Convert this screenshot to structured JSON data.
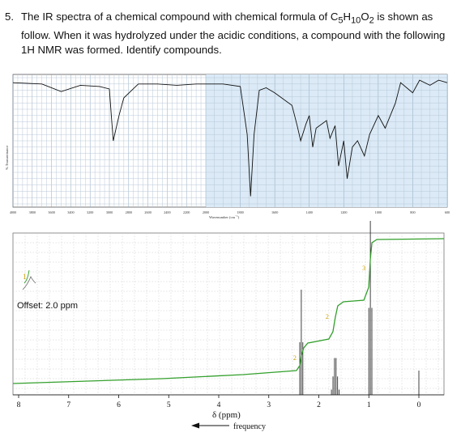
{
  "question": {
    "number": "5.",
    "text_before": "The IR spectra of a chemical compound with chemical formula of C",
    "sub1": "5",
    "mid1": "H",
    "sub2": "10",
    "mid2": "O",
    "sub3": "2",
    "text_after": " is shown as follow. When it was hydrolyzed under the acidic conditions, a compound with the following 1H NMR was formed. Identify compounds."
  },
  "ir": {
    "ylabel": "% Transmittance",
    "xlabel": "Wavenumber (cm",
    "xlabel_sup": "−1",
    "xlabel_end": ")",
    "ticks": [
      "4000",
      "3800",
      "3600",
      "3400",
      "3200",
      "3000",
      "2800",
      "2600",
      "2400",
      "2200",
      "2000",
      "1800",
      "1600",
      "1400",
      "1200",
      "1000",
      "800",
      "600"
    ]
  },
  "nmr": {
    "offset_label": "Offset: 2.0 ppm",
    "offset_number": "1",
    "xlabel": "δ (ppm)",
    "freq_label": "frequency",
    "ticks": [
      "8",
      "7",
      "6",
      "5",
      "4",
      "3",
      "2",
      "1",
      "0"
    ],
    "integrals": [
      "2",
      "2",
      "3"
    ]
  },
  "chart_data": [
    {
      "type": "line",
      "title": "",
      "xlabel": "Wavenumber (cm−1)",
      "ylabel": "% Transmittance",
      "xlim": [
        4000,
        600
      ],
      "x_reversed": true,
      "grid": true,
      "series": [
        {
          "x": [
            4000,
            3700,
            3500,
            3300,
            3100,
            3000,
            2980,
            2960,
            2900,
            2850,
            2700,
            2500,
            2300,
            2100,
            1900,
            1800,
            1760,
            1740,
            1720,
            1690,
            1650,
            1600,
            1500,
            1470,
            1450,
            1420,
            1400,
            1380,
            1360,
            1300,
            1280,
            1250,
            1230,
            1200,
            1180,
            1150,
            1120,
            1080,
            1050,
            1000,
            960,
            900,
            870,
            800,
            760,
            700,
            650,
            600
          ],
          "y": [
            96,
            95,
            89,
            94,
            93,
            91,
            70,
            50,
            70,
            84,
            95,
            95,
            94,
            95,
            95,
            93,
            55,
            6,
            55,
            90,
            92,
            88,
            78,
            62,
            50,
            63,
            70,
            45,
            60,
            66,
            52,
            62,
            30,
            50,
            20,
            45,
            50,
            38,
            55,
            70,
            60,
            80,
            96,
            88,
            98,
            94,
            98,
            96
          ]
        }
      ]
    },
    {
      "type": "line",
      "title": "",
      "xlabel": "δ (ppm)",
      "xlim": [
        8,
        0
      ],
      "x_reversed": true,
      "annotations": [
        "Offset: 2.0 ppm",
        "frequency"
      ],
      "integrals": [
        {
          "label": "2",
          "ppm": 2.38
        },
        {
          "label": "2",
          "ppm": 1.65
        },
        {
          "label": "3",
          "ppm": 0.95
        }
      ],
      "peaks": [
        {
          "ppm": 2.35,
          "multiplicity": "t"
        },
        {
          "ppm": 1.67,
          "multiplicity": "sextet"
        },
        {
          "ppm": 0.97,
          "multiplicity": "t"
        },
        {
          "ppm": 0.0,
          "multiplicity": "s"
        }
      ]
    }
  ]
}
